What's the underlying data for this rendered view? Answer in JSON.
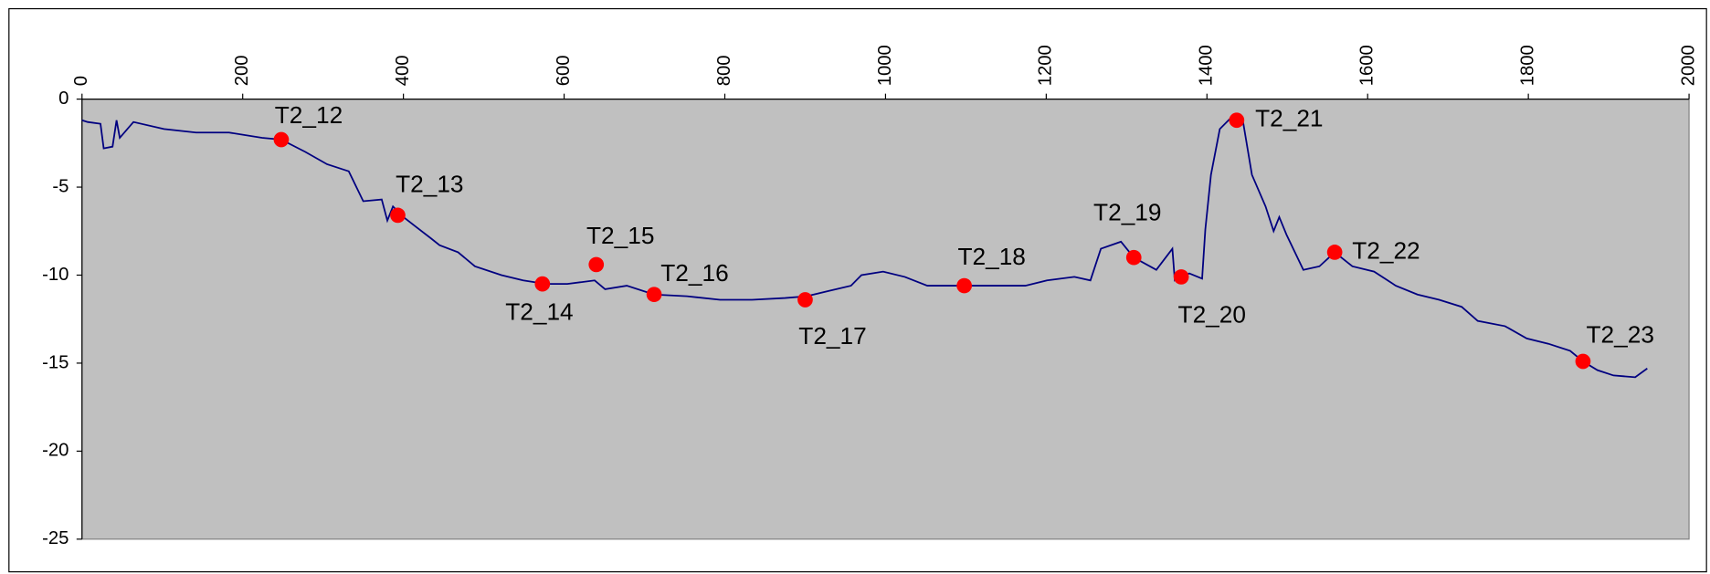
{
  "chart_data": {
    "type": "line",
    "xlim": [
      0,
      2000
    ],
    "xticks": [
      0,
      200,
      400,
      600,
      800,
      1000,
      1200,
      1400,
      1600,
      1800,
      2000
    ],
    "ylim": [
      -25,
      0
    ],
    "yticks": [
      0,
      -5,
      -10,
      -15,
      -20,
      -25
    ],
    "x_axis_position": "top",
    "plot_background": "#c0c0c0",
    "series": [
      {
        "type": "line",
        "color": "#000080",
        "x": [
          0,
          7,
          23,
          27,
          38,
          43,
          47,
          64,
          102,
          142,
          183,
          224,
          248,
          278,
          305,
          332,
          350,
          373,
          380,
          387,
          400,
          414,
          434,
          445,
          468,
          489,
          522,
          549,
          577,
          604,
          638,
          651,
          678,
          712,
          753,
          794,
          834,
          875,
          902,
          929,
          957,
          970,
          997,
          1024,
          1052,
          1092,
          1133,
          1174,
          1201,
          1235,
          1255,
          1268,
          1293,
          1309,
          1337,
          1357,
          1360,
          1378,
          1394,
          1398,
          1405,
          1416,
          1429,
          1445,
          1456,
          1473,
          1483,
          1490,
          1499,
          1520,
          1540,
          1559,
          1581,
          1608,
          1635,
          1662,
          1689,
          1717,
          1737,
          1771,
          1798,
          1825,
          1852,
          1868,
          1886,
          1906,
          1933,
          1948
        ],
        "values": [
          -1.2,
          -1.3,
          -1.4,
          -2.8,
          -2.7,
          -1.2,
          -2.2,
          -1.3,
          -1.7,
          -1.9,
          -1.9,
          -2.2,
          -2.3,
          -3.0,
          -3.7,
          -4.1,
          -5.8,
          -5.7,
          -6.9,
          -6.1,
          -6.7,
          -7.2,
          -7.9,
          -8.3,
          -8.7,
          -9.5,
          -10.0,
          -10.3,
          -10.5,
          -10.5,
          -10.3,
          -10.8,
          -10.6,
          -11.1,
          -11.2,
          -11.4,
          -11.4,
          -11.3,
          -11.2,
          -10.9,
          -10.6,
          -10.0,
          -9.8,
          -10.1,
          -10.6,
          -10.6,
          -10.6,
          -10.6,
          -10.3,
          -10.1,
          -10.3,
          -8.5,
          -8.1,
          -9.0,
          -9.7,
          -8.5,
          -10.3,
          -9.9,
          -10.2,
          -7.4,
          -4.3,
          -1.7,
          -1.1,
          -1.3,
          -4.3,
          -6.1,
          -7.5,
          -6.7,
          -7.7,
          -9.7,
          -9.5,
          -8.7,
          -9.5,
          -9.8,
          -10.6,
          -11.1,
          -11.4,
          -11.8,
          -12.6,
          -12.9,
          -13.6,
          -13.9,
          -14.3,
          -14.9,
          -15.4,
          -15.7,
          -15.8,
          -15.3
        ]
      },
      {
        "type": "scatter",
        "color": "#ff0000",
        "labels": [
          "T2_12",
          "T2_13",
          "T2_14",
          "T2_15",
          "T2_16",
          "T2_17",
          "T2_18",
          "T2_19",
          "T2_20",
          "T2_21",
          "T2_22",
          "T2_23"
        ],
        "x": [
          248,
          393,
          573,
          640,
          712,
          900,
          1098,
          1309,
          1368,
          1437,
          1559,
          1868
        ],
        "values": [
          -2.3,
          -6.6,
          -10.5,
          -9.4,
          -11.1,
          -11.4,
          -10.6,
          -9.0,
          -10.1,
          -1.2,
          -8.7,
          -14.9
        ]
      }
    ]
  }
}
